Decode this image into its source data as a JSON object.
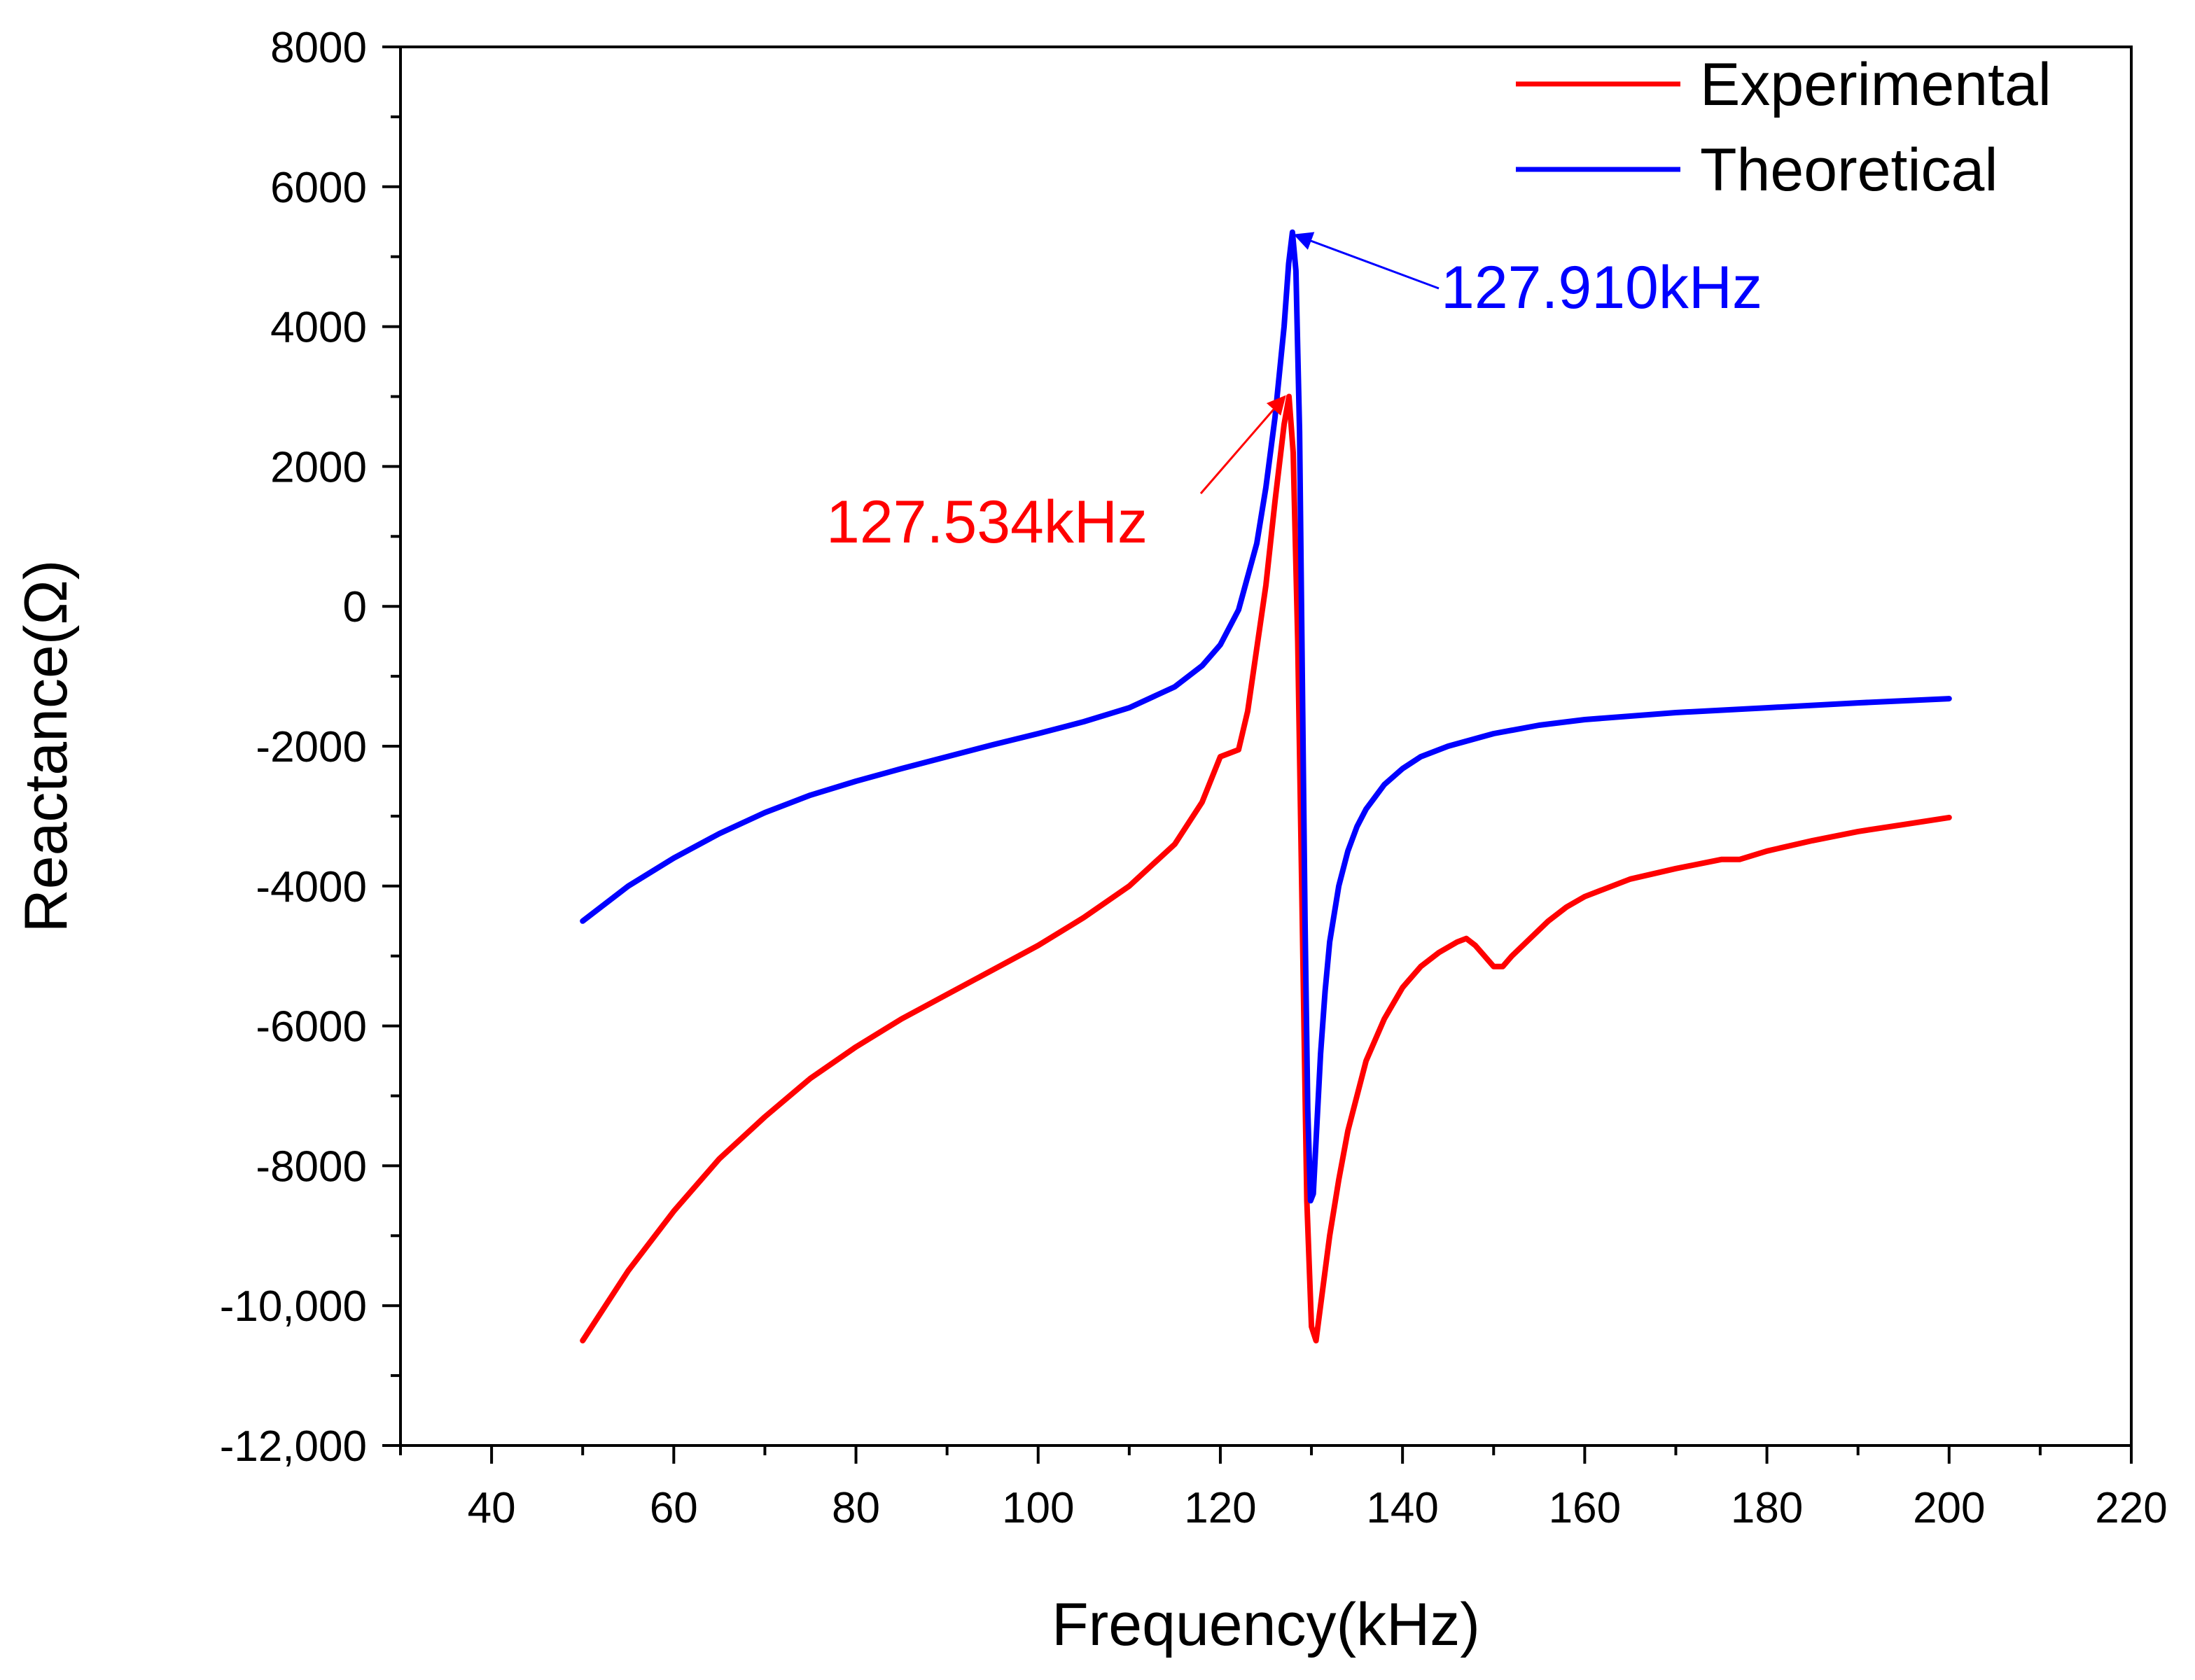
{
  "chart_data": {
    "type": "line",
    "title": "",
    "xlabel": "Frequency(kHz)",
    "ylabel": "Reactance(Ω)",
    "xlim": [
      30,
      220
    ],
    "ylim": [
      -12000,
      8000
    ],
    "x_ticks": [
      40,
      60,
      80,
      100,
      120,
      140,
      160,
      180,
      200,
      220
    ],
    "x_tick_labels": [
      "40",
      "60",
      "80",
      "100",
      "120",
      "140",
      "160",
      "180",
      "200",
      "220"
    ],
    "y_ticks": [
      8000,
      6000,
      4000,
      2000,
      0,
      -2000,
      -4000,
      -6000,
      -8000,
      -10000,
      -12000
    ],
    "y_tick_labels": [
      "8000",
      "6000",
      "4000",
      "2000",
      "0",
      "-2000",
      "-4000",
      "-6000",
      "-8000",
      "-10,000",
      "-12,000"
    ],
    "grid": false,
    "legend_position": "top-right",
    "series": [
      {
        "name": "Experimental",
        "color": "#ff0000",
        "x": [
          50,
          55,
          60,
          65,
          70,
          75,
          80,
          85,
          90,
          95,
          100,
          105,
          110,
          115,
          118,
          120,
          121,
          122,
          123,
          124,
          125,
          126,
          127,
          127.534,
          128,
          128.5,
          129,
          129.5,
          130,
          130.5,
          131,
          132,
          133,
          134,
          136,
          138,
          140,
          142,
          144,
          146,
          147,
          148,
          149,
          150,
          151,
          152,
          154,
          156,
          158,
          160,
          165,
          170,
          175,
          177,
          180,
          185,
          190,
          195,
          200
        ],
        "y": [
          -10500,
          -9500,
          -8650,
          -7900,
          -7300,
          -6750,
          -6300,
          -5900,
          -5550,
          -5200,
          -4850,
          -4450,
          -4000,
          -3400,
          -2800,
          -2150,
          -2100,
          -2050,
          -1500,
          -600,
          300,
          1500,
          2600,
          3000,
          2200,
          -500,
          -4500,
          -8500,
          -10300,
          -10500,
          -10000,
          -9000,
          -8200,
          -7500,
          -6500,
          -5900,
          -5450,
          -5150,
          -4950,
          -4800,
          -4750,
          -4850,
          -5000,
          -5150,
          -5150,
          -5000,
          -4750,
          -4500,
          -4300,
          -4150,
          -3900,
          -3750,
          -3620,
          -3620,
          -3500,
          -3350,
          -3220,
          -3120,
          -3020
        ]
      },
      {
        "name": "Theoretical",
        "color": "#0000ff",
        "x": [
          50,
          55,
          60,
          65,
          70,
          75,
          80,
          85,
          90,
          95,
          100,
          105,
          110,
          115,
          118,
          120,
          122,
          124,
          125,
          126,
          127,
          127.5,
          127.91,
          128.3,
          128.7,
          129,
          129.3,
          129.6,
          129.9,
          130.2,
          130.6,
          131,
          131.5,
          132,
          133,
          134,
          135,
          136,
          138,
          140,
          142,
          145,
          150,
          155,
          160,
          170,
          180,
          190,
          200
        ],
        "y": [
          -4500,
          -4000,
          -3600,
          -3250,
          -2950,
          -2700,
          -2500,
          -2320,
          -2150,
          -1980,
          -1820,
          -1650,
          -1450,
          -1150,
          -850,
          -550,
          -50,
          900,
          1700,
          2700,
          4000,
          4900,
          5350,
          4800,
          2500,
          -1000,
          -4500,
          -7200,
          -8500,
          -8400,
          -7400,
          -6400,
          -5500,
          -4800,
          -4000,
          -3500,
          -3150,
          -2900,
          -2550,
          -2320,
          -2150,
          -2000,
          -1820,
          -1700,
          -1620,
          -1520,
          -1450,
          -1380,
          -1320
        ]
      }
    ],
    "annotations": [
      {
        "text": "127.534kHz",
        "x": 127.534,
        "y": 3000,
        "color": "#ff0000",
        "series": "Experimental"
      },
      {
        "text": "127.910kHz",
        "x": 127.91,
        "y": 5350,
        "color": "#0000ff",
        "series": "Theoretical"
      }
    ]
  }
}
